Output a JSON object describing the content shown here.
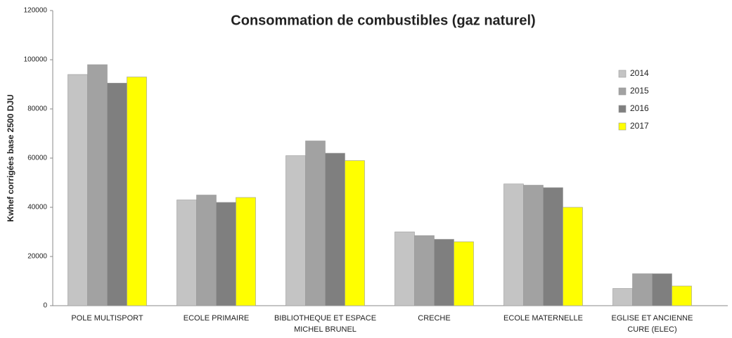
{
  "chart_data": {
    "type": "bar",
    "title": "Consommation de combustibles (gaz naturel)",
    "y_label": "Kwhef corrigées base 2500 DJU",
    "categories": [
      "POLE MULTISPORT",
      "ECOLE PRIMAIRE",
      "BIBLIOTHEQUE ET ESPACE MICHEL BRUNEL",
      "CRECHE",
      "ECOLE MATERNELLE",
      "EGLISE ET ANCIENNE CURE (ELEC)"
    ],
    "series": [
      {
        "name": "2014",
        "color": "#c4c4c4",
        "values": [
          94000,
          43000,
          61000,
          30000,
          49500,
          7000
        ]
      },
      {
        "name": "2015",
        "color": "#a2a2a2",
        "values": [
          98000,
          45000,
          67000,
          28500,
          49000,
          13000
        ]
      },
      {
        "name": "2016",
        "color": "#7f7f7f",
        "values": [
          90500,
          42000,
          62000,
          27000,
          48000,
          13000
        ]
      },
      {
        "name": "2017",
        "color": "#ffff00",
        "values": [
          93000,
          44000,
          59000,
          26000,
          40000,
          8000
        ]
      }
    ],
    "ylim": [
      0,
      120000
    ],
    "yticks": [
      0,
      20000,
      40000,
      60000,
      80000,
      100000,
      120000
    ],
    "legend": "right"
  }
}
